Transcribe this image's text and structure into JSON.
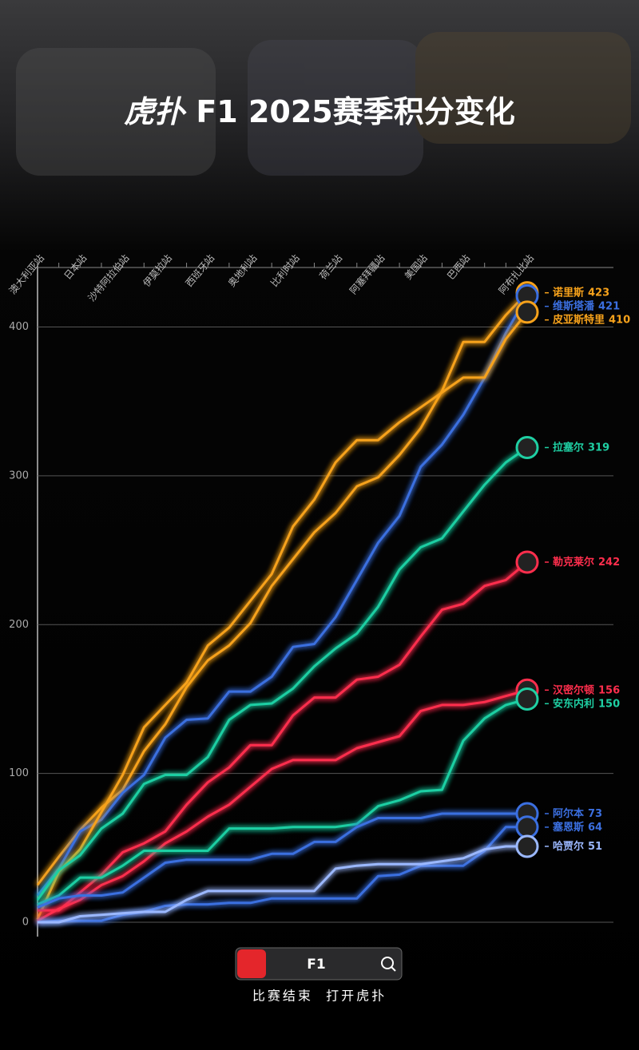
{
  "header": {
    "logo": "虎扑",
    "title": "F1 2025赛季积分变化"
  },
  "chart_data": {
    "type": "line",
    "categories": [
      "澳大利亚站",
      null,
      "日本站",
      null,
      "沙特阿拉伯站",
      null,
      "伊莫拉站",
      null,
      "西班牙站",
      null,
      "奥地利站",
      null,
      "比利时站",
      null,
      "荷兰站",
      null,
      "阿塞拜疆站",
      null,
      "美国站",
      null,
      "巴西站",
      null,
      null,
      "阿布扎比站"
    ],
    "ylim": [
      0,
      440
    ],
    "yticks": [
      0,
      100,
      200,
      300,
      400
    ],
    "grid": true,
    "series": [
      {
        "name": "诺里斯",
        "color": "#f7a21b",
        "values": [
          25,
          44,
          62,
          77,
          89,
          115,
          133,
          158,
          176,
          186,
          201,
          226,
          244,
          262,
          275,
          293,
          299,
          314,
          332,
          357,
          390,
          390,
          408,
          423
        ]
      },
      {
        "name": "维斯塔潘",
        "color": "#3b6fe0",
        "values": [
          18,
          36,
          61,
          69,
          87,
          99,
          124,
          136,
          137,
          155,
          155,
          165,
          185,
          187,
          205,
          230,
          255,
          273,
          306,
          321,
          341,
          366,
          396,
          421
        ]
      },
      {
        "name": "皮亚斯特里",
        "color": "#f7a21b",
        "values": [
          2,
          34,
          49,
          74,
          99,
          131,
          146,
          161,
          186,
          198,
          216,
          234,
          266,
          284,
          309,
          324,
          324,
          336,
          346,
          356,
          366,
          366,
          392,
          410
        ]
      },
      {
        "name": "拉塞尔",
        "color": "#1fcfa3",
        "values": [
          15,
          35,
          45,
          63,
          73,
          93,
          99,
          99,
          111,
          136,
          146,
          147,
          157,
          172,
          184,
          194,
          212,
          237,
          252,
          258,
          276,
          294,
          309,
          319
        ]
      },
      {
        "name": "勒克莱尔",
        "color": "#ff2e4d",
        "values": [
          8,
          8,
          20,
          32,
          47,
          53,
          61,
          79,
          94,
          104,
          119,
          119,
          139,
          151,
          151,
          163,
          165,
          173,
          192,
          210,
          214,
          226,
          230,
          242
        ]
      },
      {
        "name": "汉密尔顿",
        "color": "#ff2e4d",
        "values": [
          1,
          9,
          15,
          25,
          31,
          41,
          53,
          61,
          71,
          79,
          91,
          103,
          109,
          109,
          109,
          117,
          121,
          125,
          142,
          146,
          146,
          148,
          152,
          156
        ]
      },
      {
        "name": "安东内利",
        "color": "#1fcfa3",
        "values": [
          12,
          18,
          30,
          30,
          38,
          48,
          48,
          48,
          48,
          63,
          63,
          63,
          64,
          64,
          64,
          66,
          78,
          82,
          88,
          89,
          122,
          137,
          146,
          150
        ]
      },
      {
        "name": "阿尔本",
        "color": "#3b6fe0",
        "values": [
          10,
          16,
          18,
          18,
          20,
          30,
          40,
          42,
          42,
          42,
          42,
          46,
          46,
          54,
          54,
          64,
          70,
          70,
          70,
          73,
          73,
          73,
          73,
          73
        ]
      },
      {
        "name": "塞恩斯",
        "color": "#3b6fe0",
        "values": [
          0,
          1,
          1,
          1,
          5,
          7,
          11,
          12,
          12,
          13,
          13,
          16,
          16,
          16,
          16,
          16,
          31,
          32,
          38,
          38,
          38,
          48,
          64,
          64
        ]
      },
      {
        "name": "哈贾尔",
        "color": "#9bb8ff",
        "values": [
          0,
          0,
          4,
          5,
          6,
          7,
          7,
          15,
          21,
          21,
          21,
          21,
          21,
          21,
          36,
          38,
          39,
          39,
          39,
          41,
          43,
          49,
          51,
          51
        ]
      }
    ]
  },
  "footer": {
    "search": "F1",
    "caption": "比赛结束  打开虎扑"
  }
}
